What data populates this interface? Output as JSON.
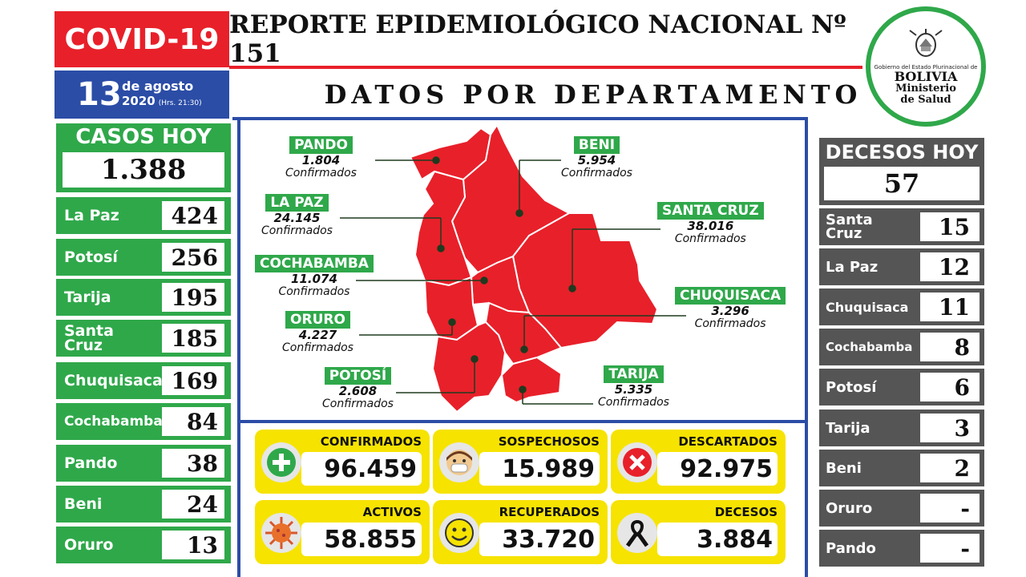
{
  "header": {
    "covid_label": "COVID-19",
    "report_title": "REPORTE EPIDEMIOLÓGICO NACIONAL Nº 151",
    "date_day": "13",
    "date_month": "de agosto",
    "date_year": "2020",
    "date_hours": "(Hrs. 21:30)",
    "section_title": "DATOS POR DEPARTAMENTO"
  },
  "logo": {
    "small_text": "Gobierno del Estado Plurinacional de",
    "country": "BOLIVIA",
    "ministry_line1": "Ministerio",
    "ministry_line2": "de Salud"
  },
  "cases_today": {
    "title": "CASOS HOY",
    "total": "1.388",
    "rows": [
      {
        "name": "La Paz",
        "value": "424"
      },
      {
        "name": "Potosí",
        "value": "256"
      },
      {
        "name": "Tarija",
        "value": "195"
      },
      {
        "name": "Santa Cruz",
        "value": "185"
      },
      {
        "name": "Chuquisaca",
        "value": "169"
      },
      {
        "name": "Cochabamba",
        "value": "84"
      },
      {
        "name": "Pando",
        "value": "38"
      },
      {
        "name": "Beni",
        "value": "24"
      },
      {
        "name": "Oruro",
        "value": "13"
      }
    ]
  },
  "deaths_today": {
    "title": "DECESOS HOY",
    "total": "57",
    "rows": [
      {
        "name": "Santa Cruz",
        "value": "15"
      },
      {
        "name": "La Paz",
        "value": "12"
      },
      {
        "name": "Chuquisaca",
        "value": "11"
      },
      {
        "name": "Cochabamba",
        "value": "8"
      },
      {
        "name": "Potosí",
        "value": "6"
      },
      {
        "name": "Tarija",
        "value": "3"
      },
      {
        "name": "Beni",
        "value": "2"
      },
      {
        "name": "Oruro",
        "value": "-"
      },
      {
        "name": "Pando",
        "value": "-"
      }
    ]
  },
  "map": {
    "confirmed_label": "Confirmados",
    "departments": [
      {
        "name": "PANDO",
        "value": "1.804"
      },
      {
        "name": "BENI",
        "value": "5.954"
      },
      {
        "name": "LA PAZ",
        "value": "24.145"
      },
      {
        "name": "SANTA CRUZ",
        "value": "38.016"
      },
      {
        "name": "COCHABAMBA",
        "value": "11.074"
      },
      {
        "name": "CHUQUISACA",
        "value": "3.296"
      },
      {
        "name": "ORURO",
        "value": "4.227"
      },
      {
        "name": "POTOSÍ",
        "value": "2.608"
      },
      {
        "name": "TARIJA",
        "value": "5.335"
      }
    ],
    "map_color": "#e8202a"
  },
  "summary": [
    {
      "title": "CONFIRMADOS",
      "value": "96.459",
      "icon": "plus-icon"
    },
    {
      "title": "SOSPECHOSOS",
      "value": "15.989",
      "icon": "masked-face-icon"
    },
    {
      "title": "DESCARTADOS",
      "value": "92.975",
      "icon": "x-circle-icon"
    },
    {
      "title": "ACTIVOS",
      "value": "58.855",
      "icon": "virus-icon"
    },
    {
      "title": "RECUPERADOS",
      "value": "33.720",
      "icon": "smiley-icon"
    },
    {
      "title": "DECESOS",
      "value": "3.884",
      "icon": "black-ribbon-icon"
    }
  ],
  "colors": {
    "red": "#e8202a",
    "green": "#2fa84a",
    "blue": "#2b4da6",
    "gray": "#555555",
    "yellow": "#f6e300"
  }
}
